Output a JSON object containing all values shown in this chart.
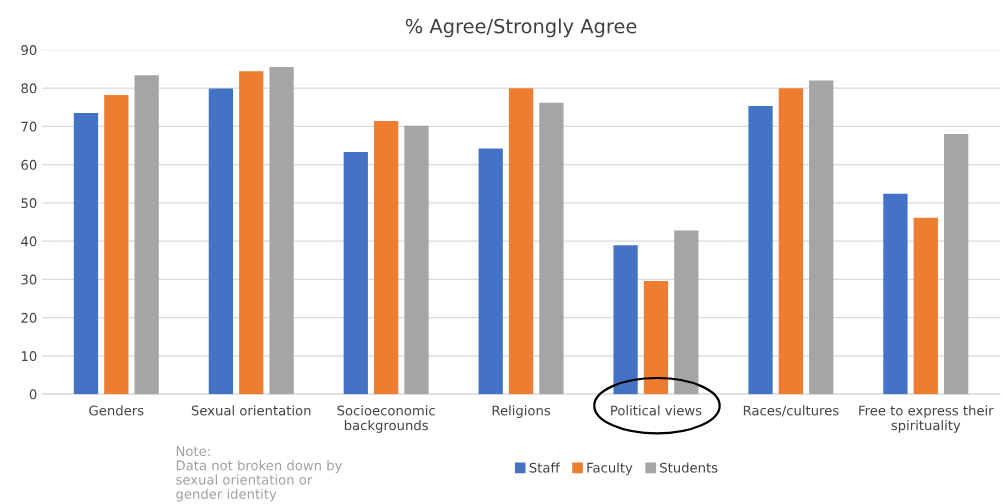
{
  "chart_data": {
    "type": "bar",
    "title": "% Agree/Strongly Agree",
    "categories": [
      "Genders",
      "Sexual orientation",
      "Socioeconomic\nbackgrounds",
      "Religions",
      "Political views",
      "Races/cultures",
      "Free to express their\nspirituality"
    ],
    "series": [
      {
        "name": "Staff",
        "color": "#4472c4",
        "values": [
          73.5,
          79.9,
          63.3,
          64.2,
          38.9,
          75.3,
          52.4
        ]
      },
      {
        "name": "Faculty",
        "color": "#ed7d31",
        "values": [
          78.2,
          84.4,
          71.4,
          80.0,
          29.6,
          80.0,
          46.1
        ]
      },
      {
        "name": "Students",
        "color": "#a5a5a5",
        "values": [
          83.4,
          85.5,
          70.2,
          76.2,
          42.8,
          82.0,
          68.0
        ]
      }
    ],
    "ylim": [
      0,
      90
    ],
    "yticks": [
      0,
      10,
      20,
      30,
      40,
      50,
      60,
      70,
      80,
      90
    ],
    "grid": "y",
    "legend": "bottom",
    "annotations": [
      "Note:\nData not broken down by\nsexual orientation or\ngender identity"
    ]
  }
}
